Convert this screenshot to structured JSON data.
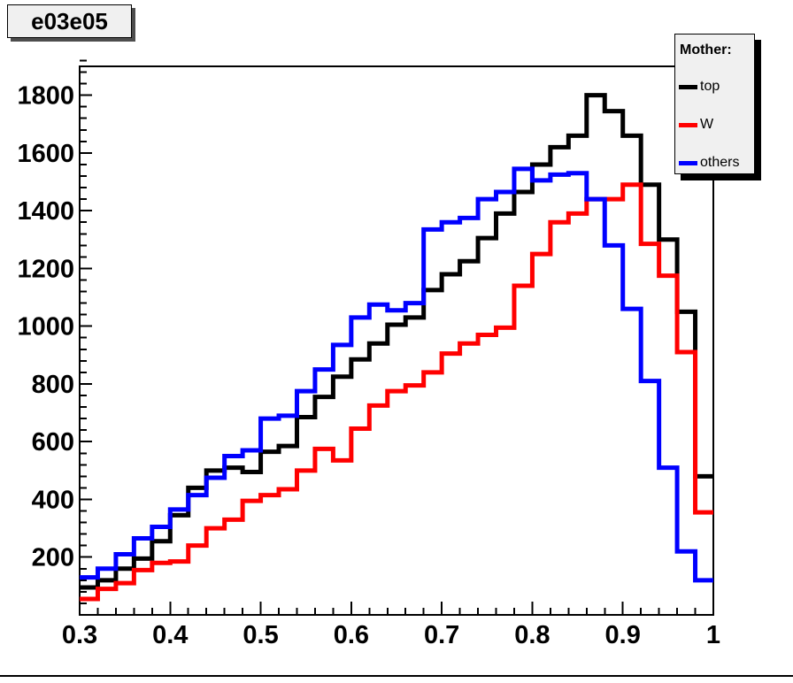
{
  "title_box": {
    "text": "e03e05",
    "bg": "#f0f0f0",
    "border": "#000000",
    "shadow": "#4d4d4d"
  },
  "legend": {
    "title": "Mother:",
    "bg": "#f0f0f0",
    "border": "#000000",
    "shadow": "#000000",
    "entries": [
      {
        "label": "top",
        "color": "#000000"
      },
      {
        "label": "W",
        "color": "#ff0000"
      },
      {
        "label": "others",
        "color": "#0000ff"
      }
    ]
  },
  "chart_data": {
    "type": "step-histogram",
    "title": "e03e05",
    "xlabel": "",
    "ylabel": "",
    "xlim": [
      0.3,
      1.0
    ],
    "ylim": [
      0,
      1900
    ],
    "grid": false,
    "legend_position": "top-right",
    "bin_start": 0.3,
    "bin_width": 0.02,
    "x_major_ticks": [
      0.3,
      0.4,
      0.5,
      0.6,
      0.7,
      0.8,
      0.9,
      1.0
    ],
    "x_tick_labels": [
      "0.3",
      "0.4",
      "0.5",
      "0.6",
      "0.7",
      "0.8",
      "0.9",
      "1"
    ],
    "x_minor_step": 0.02,
    "y_major_ticks": [
      200,
      400,
      600,
      800,
      1000,
      1200,
      1400,
      1600,
      1800
    ],
    "y_tick_labels": [
      "200",
      "400",
      "600",
      "800",
      "1000",
      "1200",
      "1400",
      "1600",
      "1800"
    ],
    "y_minor_step": 40,
    "frame_color": "#000000",
    "series": [
      {
        "name": "top",
        "color": "#000000",
        "values": [
          95,
          120,
          160,
          195,
          255,
          345,
          440,
          500,
          510,
          495,
          565,
          585,
          685,
          755,
          825,
          885,
          940,
          1005,
          1030,
          1125,
          1180,
          1225,
          1305,
          1390,
          1465,
          1560,
          1620,
          1660,
          1800,
          1745,
          1660,
          1490,
          1300,
          1050,
          480
        ]
      },
      {
        "name": "W",
        "color": "#ff0000",
        "values": [
          55,
          90,
          110,
          155,
          180,
          185,
          240,
          300,
          330,
          395,
          415,
          435,
          500,
          575,
          535,
          645,
          725,
          775,
          795,
          840,
          905,
          940,
          970,
          995,
          1140,
          1250,
          1360,
          1390,
          1440,
          1440,
          1490,
          1285,
          1175,
          910,
          355
        ]
      },
      {
        "name": "others",
        "color": "#0000ff",
        "values": [
          130,
          160,
          210,
          265,
          305,
          365,
          415,
          475,
          550,
          570,
          680,
          690,
          775,
          850,
          935,
          1030,
          1075,
          1055,
          1080,
          1335,
          1360,
          1375,
          1440,
          1465,
          1545,
          1505,
          1525,
          1530,
          1440,
          1280,
          1060,
          810,
          510,
          220,
          120
        ]
      }
    ]
  }
}
